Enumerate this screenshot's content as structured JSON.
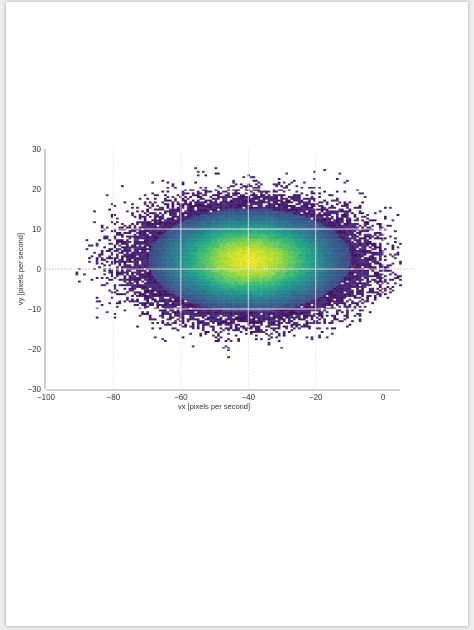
{
  "chart_data": {
    "type": "heatmap",
    "title": "",
    "xlabel": "vx [pixels per second]",
    "ylabel": "vy [pixels per second]",
    "xlim": [
      -100,
      5
    ],
    "ylim": [
      -30,
      30
    ],
    "x_ticks": [
      -100,
      -80,
      -60,
      -40,
      -20,
      0
    ],
    "y_ticks": [
      -30,
      -20,
      -10,
      0,
      10,
      20,
      30
    ],
    "x_tick_labels": [
      "−100",
      "−80",
      "−60",
      "−40",
      "−20",
      "0"
    ],
    "y_tick_labels": [
      "−30",
      "−20",
      "−10",
      "0",
      "10",
      "20",
      "30"
    ],
    "colormap": "viridis",
    "grid": true,
    "density_center": {
      "vx": -40,
      "vy": 2
    },
    "density_spread": {
      "vx": 15,
      "vy": 6.5
    },
    "reference_lines": {
      "vy": 0,
      "vx": [
        -80,
        -60,
        -40,
        -20
      ]
    }
  }
}
